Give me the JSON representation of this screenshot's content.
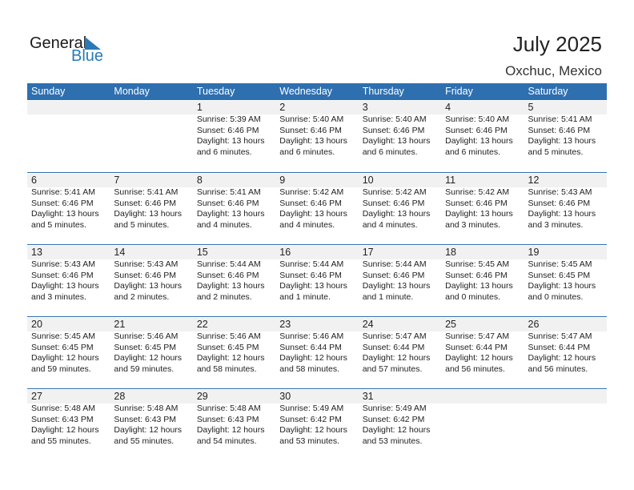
{
  "logo": {
    "text_general": "General",
    "text_blue": "Blue"
  },
  "header": {
    "title": "July 2025",
    "location": "Oxchuc, Mexico"
  },
  "colors": {
    "accent": "#2e6fb0",
    "band": "#f1f1f1"
  },
  "weekdays": [
    "Sunday",
    "Monday",
    "Tuesday",
    "Wednesday",
    "Thursday",
    "Friday",
    "Saturday"
  ],
  "weeks": [
    [
      null,
      null,
      {
        "day": "1",
        "sunrise": "Sunrise: 5:39 AM",
        "sunset": "Sunset: 6:46 PM",
        "daylight": "Daylight: 13 hours",
        "daylight2": "and 6 minutes."
      },
      {
        "day": "2",
        "sunrise": "Sunrise: 5:40 AM",
        "sunset": "Sunset: 6:46 PM",
        "daylight": "Daylight: 13 hours",
        "daylight2": "and 6 minutes."
      },
      {
        "day": "3",
        "sunrise": "Sunrise: 5:40 AM",
        "sunset": "Sunset: 6:46 PM",
        "daylight": "Daylight: 13 hours",
        "daylight2": "and 6 minutes."
      },
      {
        "day": "4",
        "sunrise": "Sunrise: 5:40 AM",
        "sunset": "Sunset: 6:46 PM",
        "daylight": "Daylight: 13 hours",
        "daylight2": "and 6 minutes."
      },
      {
        "day": "5",
        "sunrise": "Sunrise: 5:41 AM",
        "sunset": "Sunset: 6:46 PM",
        "daylight": "Daylight: 13 hours",
        "daylight2": "and 5 minutes."
      }
    ],
    [
      {
        "day": "6",
        "sunrise": "Sunrise: 5:41 AM",
        "sunset": "Sunset: 6:46 PM",
        "daylight": "Daylight: 13 hours",
        "daylight2": "and 5 minutes."
      },
      {
        "day": "7",
        "sunrise": "Sunrise: 5:41 AM",
        "sunset": "Sunset: 6:46 PM",
        "daylight": "Daylight: 13 hours",
        "daylight2": "and 5 minutes."
      },
      {
        "day": "8",
        "sunrise": "Sunrise: 5:41 AM",
        "sunset": "Sunset: 6:46 PM",
        "daylight": "Daylight: 13 hours",
        "daylight2": "and 4 minutes."
      },
      {
        "day": "9",
        "sunrise": "Sunrise: 5:42 AM",
        "sunset": "Sunset: 6:46 PM",
        "daylight": "Daylight: 13 hours",
        "daylight2": "and 4 minutes."
      },
      {
        "day": "10",
        "sunrise": "Sunrise: 5:42 AM",
        "sunset": "Sunset: 6:46 PM",
        "daylight": "Daylight: 13 hours",
        "daylight2": "and 4 minutes."
      },
      {
        "day": "11",
        "sunrise": "Sunrise: 5:42 AM",
        "sunset": "Sunset: 6:46 PM",
        "daylight": "Daylight: 13 hours",
        "daylight2": "and 3 minutes."
      },
      {
        "day": "12",
        "sunrise": "Sunrise: 5:43 AM",
        "sunset": "Sunset: 6:46 PM",
        "daylight": "Daylight: 13 hours",
        "daylight2": "and 3 minutes."
      }
    ],
    [
      {
        "day": "13",
        "sunrise": "Sunrise: 5:43 AM",
        "sunset": "Sunset: 6:46 PM",
        "daylight": "Daylight: 13 hours",
        "daylight2": "and 3 minutes."
      },
      {
        "day": "14",
        "sunrise": "Sunrise: 5:43 AM",
        "sunset": "Sunset: 6:46 PM",
        "daylight": "Daylight: 13 hours",
        "daylight2": "and 2 minutes."
      },
      {
        "day": "15",
        "sunrise": "Sunrise: 5:44 AM",
        "sunset": "Sunset: 6:46 PM",
        "daylight": "Daylight: 13 hours",
        "daylight2": "and 2 minutes."
      },
      {
        "day": "16",
        "sunrise": "Sunrise: 5:44 AM",
        "sunset": "Sunset: 6:46 PM",
        "daylight": "Daylight: 13 hours",
        "daylight2": "and 1 minute."
      },
      {
        "day": "17",
        "sunrise": "Sunrise: 5:44 AM",
        "sunset": "Sunset: 6:46 PM",
        "daylight": "Daylight: 13 hours",
        "daylight2": "and 1 minute."
      },
      {
        "day": "18",
        "sunrise": "Sunrise: 5:45 AM",
        "sunset": "Sunset: 6:46 PM",
        "daylight": "Daylight: 13 hours",
        "daylight2": "and 0 minutes."
      },
      {
        "day": "19",
        "sunrise": "Sunrise: 5:45 AM",
        "sunset": "Sunset: 6:45 PM",
        "daylight": "Daylight: 13 hours",
        "daylight2": "and 0 minutes."
      }
    ],
    [
      {
        "day": "20",
        "sunrise": "Sunrise: 5:45 AM",
        "sunset": "Sunset: 6:45 PM",
        "daylight": "Daylight: 12 hours",
        "daylight2": "and 59 minutes."
      },
      {
        "day": "21",
        "sunrise": "Sunrise: 5:46 AM",
        "sunset": "Sunset: 6:45 PM",
        "daylight": "Daylight: 12 hours",
        "daylight2": "and 59 minutes."
      },
      {
        "day": "22",
        "sunrise": "Sunrise: 5:46 AM",
        "sunset": "Sunset: 6:45 PM",
        "daylight": "Daylight: 12 hours",
        "daylight2": "and 58 minutes."
      },
      {
        "day": "23",
        "sunrise": "Sunrise: 5:46 AM",
        "sunset": "Sunset: 6:44 PM",
        "daylight": "Daylight: 12 hours",
        "daylight2": "and 58 minutes."
      },
      {
        "day": "24",
        "sunrise": "Sunrise: 5:47 AM",
        "sunset": "Sunset: 6:44 PM",
        "daylight": "Daylight: 12 hours",
        "daylight2": "and 57 minutes."
      },
      {
        "day": "25",
        "sunrise": "Sunrise: 5:47 AM",
        "sunset": "Sunset: 6:44 PM",
        "daylight": "Daylight: 12 hours",
        "daylight2": "and 56 minutes."
      },
      {
        "day": "26",
        "sunrise": "Sunrise: 5:47 AM",
        "sunset": "Sunset: 6:44 PM",
        "daylight": "Daylight: 12 hours",
        "daylight2": "and 56 minutes."
      }
    ],
    [
      {
        "day": "27",
        "sunrise": "Sunrise: 5:48 AM",
        "sunset": "Sunset: 6:43 PM",
        "daylight": "Daylight: 12 hours",
        "daylight2": "and 55 minutes."
      },
      {
        "day": "28",
        "sunrise": "Sunrise: 5:48 AM",
        "sunset": "Sunset: 6:43 PM",
        "daylight": "Daylight: 12 hours",
        "daylight2": "and 55 minutes."
      },
      {
        "day": "29",
        "sunrise": "Sunrise: 5:48 AM",
        "sunset": "Sunset: 6:43 PM",
        "daylight": "Daylight: 12 hours",
        "daylight2": "and 54 minutes."
      },
      {
        "day": "30",
        "sunrise": "Sunrise: 5:49 AM",
        "sunset": "Sunset: 6:42 PM",
        "daylight": "Daylight: 12 hours",
        "daylight2": "and 53 minutes."
      },
      {
        "day": "31",
        "sunrise": "Sunrise: 5:49 AM",
        "sunset": "Sunset: 6:42 PM",
        "daylight": "Daylight: 12 hours",
        "daylight2": "and 53 minutes."
      },
      null,
      null
    ]
  ]
}
